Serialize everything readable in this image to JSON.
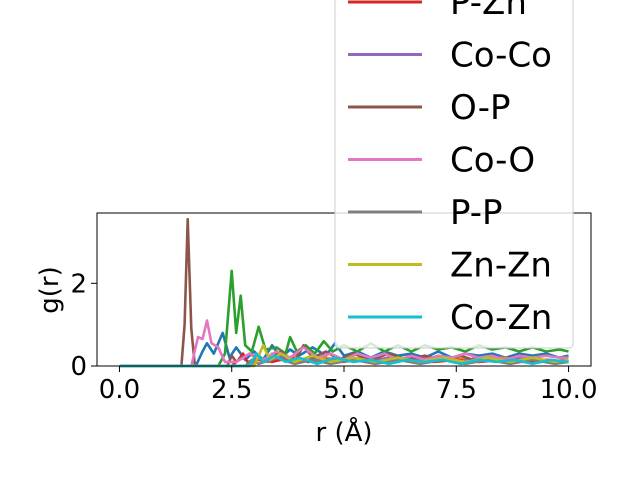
{
  "chart_data": {
    "type": "line",
    "title": "",
    "xlabel": "r (Å)",
    "ylabel": "g(r)",
    "xlim": [
      -0.5,
      10.5
    ],
    "ylim": [
      0,
      3.7
    ],
    "xticks": [
      0.0,
      2.5,
      5.0,
      7.5,
      10.0
    ],
    "xtick_labels": [
      "0.0",
      "2.5",
      "5.0",
      "7.5",
      "10.0"
    ],
    "yticks": [
      0,
      2
    ],
    "ytick_labels": [
      "0",
      "2"
    ],
    "grid": false,
    "legend_position": "upper-right",
    "legend_entries_visible": [
      "P-Zn",
      "Co-Co",
      "O-P",
      "Co-O",
      "P-P",
      "Zn-Zn",
      "Co-Zn"
    ],
    "series": [
      {
        "name": "",
        "color": "#1f77b4",
        "points": [
          [
            0,
            0
          ],
          [
            1.7,
            0
          ],
          [
            1.85,
            0.35
          ],
          [
            1.95,
            0.55
          ],
          [
            2.1,
            0.3
          ],
          [
            2.3,
            0.8
          ],
          [
            2.45,
            0.2
          ],
          [
            2.6,
            0.45
          ],
          [
            2.8,
            0.15
          ],
          [
            3.0,
            0.35
          ],
          [
            3.2,
            0.15
          ],
          [
            3.4,
            0.5
          ],
          [
            3.6,
            0.2
          ],
          [
            3.8,
            0.4
          ],
          [
            4.0,
            0.25
          ],
          [
            4.3,
            0.45
          ],
          [
            4.6,
            0.25
          ],
          [
            4.8,
            0.55
          ],
          [
            5.0,
            0.25
          ],
          [
            5.3,
            0.35
          ],
          [
            5.6,
            0.2
          ],
          [
            5.9,
            0.35
          ],
          [
            6.2,
            0.25
          ],
          [
            6.5,
            0.3
          ],
          [
            6.8,
            0.2
          ],
          [
            7.1,
            0.35
          ],
          [
            7.4,
            0.2
          ],
          [
            7.7,
            0.3
          ],
          [
            8.0,
            0.25
          ],
          [
            8.3,
            0.3
          ],
          [
            8.6,
            0.2
          ],
          [
            8.9,
            0.3
          ],
          [
            9.2,
            0.25
          ],
          [
            9.5,
            0.3
          ],
          [
            9.8,
            0.2
          ],
          [
            10.0,
            0.25
          ]
        ]
      },
      {
        "name": "",
        "color": "#ff7f0e",
        "points": [
          [
            0,
            0
          ],
          [
            2.9,
            0
          ],
          [
            3.05,
            0.2
          ],
          [
            3.2,
            0.1
          ],
          [
            3.4,
            0.3
          ],
          [
            3.6,
            0.15
          ],
          [
            3.9,
            0.25
          ],
          [
            4.2,
            0.1
          ],
          [
            4.5,
            0.2
          ],
          [
            5.0,
            0.15
          ],
          [
            5.5,
            0.2
          ],
          [
            6.0,
            0.1
          ],
          [
            6.5,
            0.2
          ],
          [
            7.0,
            0.15
          ],
          [
            7.5,
            0.2
          ],
          [
            8.0,
            0.1
          ],
          [
            8.5,
            0.2
          ],
          [
            9.0,
            0.15
          ],
          [
            9.5,
            0.15
          ],
          [
            10.0,
            0.1
          ]
        ]
      },
      {
        "name": "",
        "color": "#2ca02c",
        "points": [
          [
            0,
            0
          ],
          [
            2.2,
            0
          ],
          [
            2.35,
            0.3
          ],
          [
            2.5,
            2.3
          ],
          [
            2.6,
            0.8
          ],
          [
            2.7,
            1.7
          ],
          [
            2.8,
            0.5
          ],
          [
            2.95,
            0.35
          ],
          [
            3.1,
            0.95
          ],
          [
            3.25,
            0.4
          ],
          [
            3.5,
            0.45
          ],
          [
            3.7,
            0.3
          ],
          [
            3.8,
            0.7
          ],
          [
            3.95,
            0.35
          ],
          [
            4.15,
            0.5
          ],
          [
            4.35,
            0.3
          ],
          [
            4.55,
            0.6
          ],
          [
            4.75,
            0.35
          ],
          [
            5.0,
            0.5
          ],
          [
            5.3,
            0.35
          ],
          [
            5.6,
            0.55
          ],
          [
            5.9,
            0.35
          ],
          [
            6.2,
            0.5
          ],
          [
            6.5,
            0.35
          ],
          [
            6.8,
            0.5
          ],
          [
            7.1,
            0.4
          ],
          [
            7.4,
            0.45
          ],
          [
            7.7,
            0.35
          ],
          [
            8.0,
            0.5
          ],
          [
            8.3,
            0.4
          ],
          [
            8.6,
            0.45
          ],
          [
            8.9,
            0.35
          ],
          [
            9.2,
            0.45
          ],
          [
            9.5,
            0.35
          ],
          [
            9.8,
            0.4
          ],
          [
            10.0,
            0.35
          ]
        ]
      },
      {
        "name": "P-Zn",
        "color": "#d62728",
        "points": [
          [
            0,
            0
          ],
          [
            2.5,
            0
          ],
          [
            2.65,
            0.15
          ],
          [
            2.75,
            0.3
          ],
          [
            2.85,
            0.1
          ],
          [
            3.1,
            0.15
          ],
          [
            3.4,
            0.1
          ],
          [
            3.8,
            0.2
          ],
          [
            4.2,
            0.1
          ],
          [
            4.6,
            0.15
          ],
          [
            5.0,
            0.1
          ],
          [
            5.5,
            0.2
          ],
          [
            6.0,
            0.1
          ],
          [
            6.5,
            0.15
          ],
          [
            7.0,
            0.1
          ],
          [
            7.5,
            0.15
          ],
          [
            8.0,
            0.1
          ],
          [
            8.5,
            0.15
          ],
          [
            9.0,
            0.1
          ],
          [
            9.5,
            0.15
          ],
          [
            10.0,
            0.1
          ]
        ]
      },
      {
        "name": "Co-Co",
        "color": "#9467bd",
        "points": [
          [
            0,
            0
          ],
          [
            2.9,
            0
          ],
          [
            3.1,
            0.2
          ],
          [
            3.3,
            0.1
          ],
          [
            3.6,
            0.25
          ],
          [
            3.9,
            0.1
          ],
          [
            4.2,
            0.2
          ],
          [
            4.6,
            0.1
          ],
          [
            5.0,
            0.2
          ],
          [
            5.5,
            0.1
          ],
          [
            6.0,
            0.2
          ],
          [
            6.5,
            0.15
          ],
          [
            7.0,
            0.2
          ],
          [
            7.5,
            0.1
          ],
          [
            8.0,
            0.2
          ],
          [
            8.5,
            0.15
          ],
          [
            9.0,
            0.2
          ],
          [
            9.5,
            0.1
          ],
          [
            10.0,
            0.15
          ]
        ]
      },
      {
        "name": "O-P",
        "color": "#8c564b",
        "points": [
          [
            0,
            0
          ],
          [
            1.38,
            0
          ],
          [
            1.45,
            1.0
          ],
          [
            1.52,
            3.55
          ],
          [
            1.6,
            0.9
          ],
          [
            1.68,
            0
          ],
          [
            2.4,
            0
          ],
          [
            2.5,
            0.25
          ],
          [
            2.6,
            0.1
          ],
          [
            2.9,
            0.3
          ],
          [
            3.2,
            0.1
          ],
          [
            3.6,
            0.35
          ],
          [
            3.9,
            0.1
          ],
          [
            4.1,
            0.5
          ],
          [
            4.3,
            0.2
          ],
          [
            4.6,
            0.35
          ],
          [
            4.9,
            0.15
          ],
          [
            5.2,
            0.3
          ],
          [
            5.6,
            0.15
          ],
          [
            6.0,
            0.3
          ],
          [
            6.4,
            0.15
          ],
          [
            6.8,
            0.25
          ],
          [
            7.2,
            0.15
          ],
          [
            7.6,
            0.25
          ],
          [
            8.0,
            0.1
          ],
          [
            8.4,
            0.2
          ],
          [
            8.8,
            0.1
          ],
          [
            9.2,
            0.2
          ],
          [
            9.6,
            0.1
          ],
          [
            10.0,
            0.15
          ]
        ]
      },
      {
        "name": "Co-O",
        "color": "#e377c2",
        "points": [
          [
            0,
            0
          ],
          [
            1.6,
            0
          ],
          [
            1.75,
            0.7
          ],
          [
            1.85,
            0.65
          ],
          [
            1.95,
            1.1
          ],
          [
            2.05,
            0.55
          ],
          [
            2.2,
            0.45
          ],
          [
            2.35,
            0.1
          ],
          [
            2.6,
            0.1
          ],
          [
            2.9,
            0.3
          ],
          [
            3.2,
            0.15
          ],
          [
            3.5,
            0.35
          ],
          [
            3.8,
            0.2
          ],
          [
            4.1,
            0.45
          ],
          [
            4.4,
            0.2
          ],
          [
            4.7,
            0.3
          ],
          [
            5.0,
            0.15
          ],
          [
            5.3,
            0.3
          ],
          [
            5.6,
            0.2
          ],
          [
            5.9,
            0.3
          ],
          [
            6.2,
            0.15
          ],
          [
            6.5,
            0.25
          ],
          [
            6.8,
            0.15
          ],
          [
            7.1,
            0.25
          ],
          [
            7.4,
            0.2
          ],
          [
            7.7,
            0.3
          ],
          [
            8.0,
            0.2
          ],
          [
            8.3,
            0.25
          ],
          [
            8.6,
            0.15
          ],
          [
            8.9,
            0.25
          ],
          [
            9.2,
            0.2
          ],
          [
            9.5,
            0.25
          ],
          [
            9.8,
            0.2
          ],
          [
            10.0,
            0.2
          ]
        ]
      },
      {
        "name": "P-P",
        "color": "#7f7f7f",
        "points": [
          [
            0,
            0
          ],
          [
            2.8,
            0
          ],
          [
            2.95,
            0.15
          ],
          [
            3.1,
            0.05
          ],
          [
            3.5,
            0.2
          ],
          [
            3.9,
            0.05
          ],
          [
            4.3,
            0.15
          ],
          [
            4.7,
            0.05
          ],
          [
            5.2,
            0.15
          ],
          [
            5.7,
            0.05
          ],
          [
            6.2,
            0.15
          ],
          [
            6.7,
            0.05
          ],
          [
            7.2,
            0.15
          ],
          [
            7.7,
            0.05
          ],
          [
            8.2,
            0.15
          ],
          [
            8.7,
            0.05
          ],
          [
            9.2,
            0.15
          ],
          [
            9.7,
            0.05
          ],
          [
            10.0,
            0.1
          ]
        ]
      },
      {
        "name": "Zn-Zn",
        "color": "#bcbd22",
        "points": [
          [
            0,
            0
          ],
          [
            3.0,
            0
          ],
          [
            3.2,
            0.5
          ],
          [
            3.35,
            0.15
          ],
          [
            3.6,
            0.3
          ],
          [
            3.9,
            0.1
          ],
          [
            4.3,
            0.25
          ],
          [
            4.7,
            0.1
          ],
          [
            5.2,
            0.2
          ],
          [
            5.7,
            0.1
          ],
          [
            6.2,
            0.2
          ],
          [
            6.7,
            0.1
          ],
          [
            7.2,
            0.2
          ],
          [
            7.7,
            0.1
          ],
          [
            8.2,
            0.2
          ],
          [
            8.7,
            0.1
          ],
          [
            9.2,
            0.2
          ],
          [
            9.7,
            0.1
          ],
          [
            10.0,
            0.15
          ]
        ]
      },
      {
        "name": "Co-Zn",
        "color": "#17becf",
        "points": [
          [
            0,
            0
          ],
          [
            2.9,
            0
          ],
          [
            3.05,
            0.3
          ],
          [
            3.2,
            0.1
          ],
          [
            3.45,
            0.25
          ],
          [
            3.7,
            0.1
          ],
          [
            4.0,
            0.2
          ],
          [
            4.4,
            0.05
          ],
          [
            4.8,
            0.2
          ],
          [
            5.2,
            0.1
          ],
          [
            5.6,
            0.15
          ],
          [
            6.0,
            0.05
          ],
          [
            6.4,
            0.15
          ],
          [
            6.8,
            0.1
          ],
          [
            7.2,
            0.15
          ],
          [
            7.6,
            0.05
          ],
          [
            8.0,
            0.15
          ],
          [
            8.4,
            0.1
          ],
          [
            8.8,
            0.15
          ],
          [
            9.2,
            0.05
          ],
          [
            9.6,
            0.15
          ],
          [
            10.0,
            0.1
          ]
        ]
      }
    ]
  }
}
